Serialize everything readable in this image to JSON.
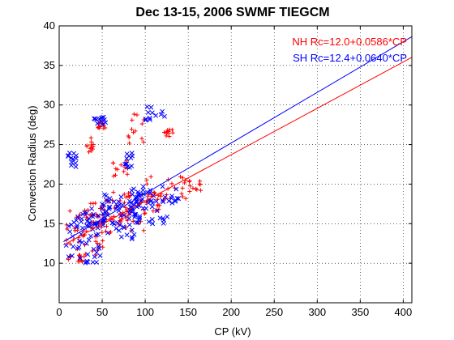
{
  "chart_data": {
    "type": "scatter",
    "title": "Dec 13-15, 2006 SWMF TIEGCM",
    "xlabel": "CP (kV)",
    "ylabel": "Convection Radius (deg)",
    "xlim": [
      0,
      410
    ],
    "ylim": [
      5,
      40
    ],
    "xticks": [
      0,
      50,
      100,
      150,
      200,
      250,
      300,
      350,
      400
    ],
    "yticks": [
      10,
      15,
      20,
      25,
      30,
      35,
      40
    ],
    "grid": true,
    "legend_position": "top-right",
    "series": [
      {
        "name": "NH",
        "marker": "+",
        "color": "#ff0000",
        "fit_label": "NH Rc=12.0+0.0586*CP",
        "fit": {
          "intercept": 12.0,
          "slope": 0.0586,
          "x_range": [
            5,
            410
          ]
        },
        "clusters": [
          {
            "x": [
              8,
              32
            ],
            "y": [
              10,
              11
            ]
          },
          {
            "x": [
              8,
              60
            ],
            "y": [
              11,
              17
            ]
          },
          {
            "x": [
              30,
              100
            ],
            "y": [
              14,
              18
            ]
          },
          {
            "x": [
              60,
              130
            ],
            "y": [
              16,
              19
            ]
          },
          {
            "x": [
              100,
              165
            ],
            "y": [
              18,
              21
            ]
          },
          {
            "x": [
              45,
              55
            ],
            "y": [
              27,
              28
            ]
          },
          {
            "x": [
              80,
              100
            ],
            "y": [
              25,
              29
            ]
          },
          {
            "x": [
              120,
              135
            ],
            "y": [
              26,
              27
            ]
          },
          {
            "x": [
              60,
              80
            ],
            "y": [
              21,
              23
            ]
          },
          {
            "x": [
              30,
              40
            ],
            "y": [
              24,
              26
            ]
          }
        ]
      },
      {
        "name": "SH",
        "marker": "x",
        "color": "#0000ff",
        "fit_label": "SH Rc=12.4+0.0640*CP",
        "fit": {
          "intercept": 12.4,
          "slope": 0.064,
          "x_range": [
            5,
            410
          ]
        },
        "clusters": [
          {
            "x": [
              8,
              50
            ],
            "y": [
              10,
              16
            ]
          },
          {
            "x": [
              20,
              90
            ],
            "y": [
              13,
              18
            ]
          },
          {
            "x": [
              50,
              130
            ],
            "y": [
              15,
              19
            ]
          },
          {
            "x": [
              80,
              140
            ],
            "y": [
              17,
              20
            ]
          },
          {
            "x": [
              40,
              55
            ],
            "y": [
              27.5,
              28.5
            ]
          },
          {
            "x": [
              100,
              130
            ],
            "y": [
              28,
              30
            ]
          },
          {
            "x": [
              70,
              85
            ],
            "y": [
              22,
              24
            ]
          },
          {
            "x": [
              10,
              20
            ],
            "y": [
              22,
              24
            ]
          }
        ]
      }
    ]
  }
}
